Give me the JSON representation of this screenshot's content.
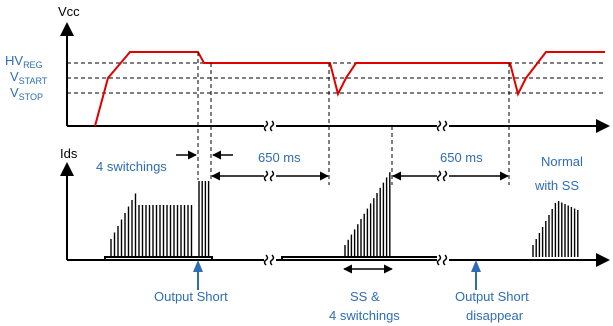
{
  "axes": {
    "vcc_label": "Vcc",
    "ids_label": "Ids"
  },
  "levels": {
    "hv_reg": {
      "main": "HV",
      "sub": "REG"
    },
    "v_start": {
      "main": "V",
      "sub": "START"
    },
    "v_stop": {
      "main": "V",
      "sub": "STOP"
    }
  },
  "annotations": {
    "four_switchings": "4 switchings",
    "delay_1": "650 ms",
    "delay_2": "650 ms",
    "normal_line1": "Normal",
    "normal_line2": "with SS",
    "output_short": "Output Short",
    "ss_line1": "SS &",
    "ss_line2": "4 switchings",
    "disappear_line1": "Output Short",
    "disappear_line2": "disappear"
  },
  "colors": {
    "vcc_trace": "#e00000",
    "label_blue": "#2e6db5",
    "arrow_blue": "#2e6db5",
    "axis": "#000000"
  }
}
